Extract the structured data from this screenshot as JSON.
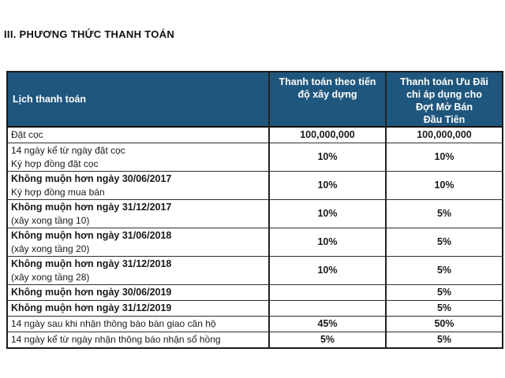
{
  "page": {
    "title": "III. PHƯƠNG THỨC THANH TOÁN"
  },
  "colors": {
    "header_bg": "#1F567D",
    "header_text": "#FFFFFF",
    "border": "#2F2F2F",
    "body_text": "#1A1A1A"
  },
  "table": {
    "columns": [
      {
        "label": "Lịch thanh toán"
      },
      {
        "label": "Thanh toán theo tiến\nđộ xây dựng"
      },
      {
        "label": "Thanh toán Ưu Đãi\nchi áp dụng cho\nĐợt Mở Bán\nĐầu Tiên"
      }
    ],
    "rows": [
      {
        "lines": [
          {
            "text": "Đặt cọc",
            "bold": false
          }
        ],
        "progress": "100,000,000",
        "promo": "100,000,000"
      },
      {
        "lines": [
          {
            "text": "14 ngày kể từ ngày đặt cọc",
            "bold": false
          },
          {
            "text": "Ký hợp đồng đặt cọc",
            "bold": false
          }
        ],
        "progress": "10%",
        "promo": "10%"
      },
      {
        "lines": [
          {
            "text": "Không muộn hơn ngày 30/06/2017",
            "bold": true
          },
          {
            "text": "Ký hợp đồng mua bán",
            "bold": false
          }
        ],
        "progress": "10%",
        "promo": "10%"
      },
      {
        "lines": [
          {
            "text": "Không muộn hơn ngày 31/12/2017",
            "bold": true
          },
          {
            "text": "(xây xong tầng 10)",
            "bold": false
          }
        ],
        "progress": "10%",
        "promo": "5%"
      },
      {
        "lines": [
          {
            "text": "Không muộn hơn ngày 31/06/2018",
            "bold": true
          },
          {
            "text": "(xây xong tầng 20)",
            "bold": false
          }
        ],
        "progress": "10%",
        "promo": "5%"
      },
      {
        "lines": [
          {
            "text": "Không muộn hơn ngày 31/12/2018",
            "bold": true
          },
          {
            "text": "(xây xong tầng 28)",
            "bold": false
          }
        ],
        "progress": "10%",
        "promo": "5%"
      },
      {
        "lines": [
          {
            "text": "Không muộn hơn ngày 30/06/2019",
            "bold": true
          }
        ],
        "progress": "",
        "promo": "5%"
      },
      {
        "lines": [
          {
            "text": "Không muộn hơn ngày 31/12/2019",
            "bold": true
          }
        ],
        "progress": "",
        "promo": "5%"
      },
      {
        "lines": [
          {
            "text": "14 ngày sau khi nhận thông báo bàn giao căn hộ",
            "bold": false
          }
        ],
        "progress": "45%",
        "promo": "50%"
      },
      {
        "lines": [
          {
            "text": "14 ngày kể từ ngày nhận thông báo nhận sổ hồng",
            "bold": false
          }
        ],
        "progress": "5%",
        "promo": "5%"
      }
    ]
  }
}
